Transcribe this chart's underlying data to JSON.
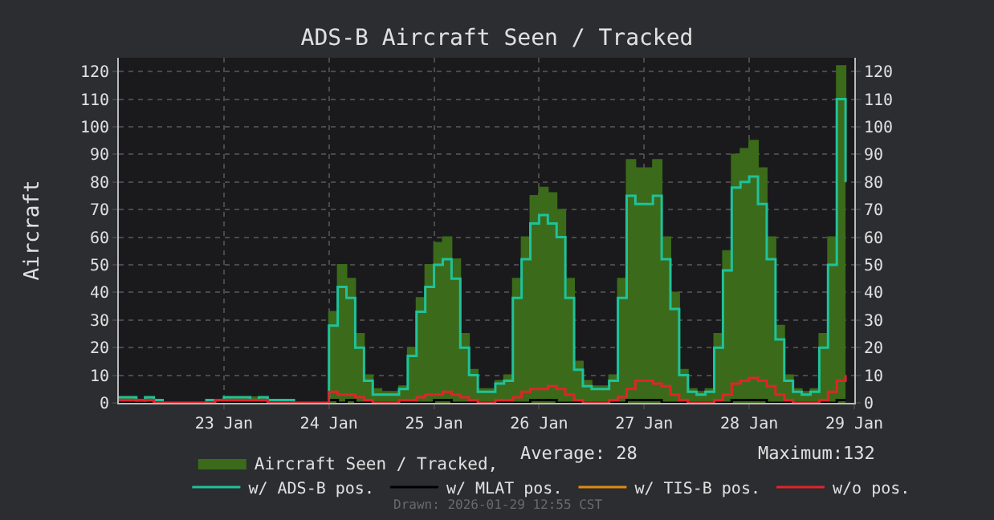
{
  "chart_data": {
    "type": "area",
    "title": "ADS-B Aircraft Seen / Tracked",
    "ylabel": "Aircraft",
    "x": [
      "2026-01-22T00:00",
      "2026-01-22T02:00",
      "2026-01-22T04:00",
      "2026-01-22T06:00",
      "2026-01-22T08:00",
      "2026-01-22T10:00",
      "2026-01-22T12:00",
      "2026-01-22T14:00",
      "2026-01-22T16:00",
      "2026-01-22T18:00",
      "2026-01-22T20:00",
      "2026-01-22T22:00",
      "2026-01-23T00:00",
      "2026-01-23T02:00",
      "2026-01-23T04:00",
      "2026-01-23T06:00",
      "2026-01-23T08:00",
      "2026-01-23T10:00",
      "2026-01-23T12:00",
      "2026-01-23T14:00",
      "2026-01-23T16:00",
      "2026-01-23T18:00",
      "2026-01-23T20:00",
      "2026-01-23T22:00",
      "2026-01-24T00:00",
      "2026-01-24T02:00",
      "2026-01-24T04:00",
      "2026-01-24T06:00",
      "2026-01-24T08:00",
      "2026-01-24T10:00",
      "2026-01-24T12:00",
      "2026-01-24T14:00",
      "2026-01-24T16:00",
      "2026-01-24T18:00",
      "2026-01-24T20:00",
      "2026-01-24T22:00",
      "2026-01-25T00:00",
      "2026-01-25T02:00",
      "2026-01-25T04:00",
      "2026-01-25T06:00",
      "2026-01-25T08:00",
      "2026-01-25T10:00",
      "2026-01-25T12:00",
      "2026-01-25T14:00",
      "2026-01-25T16:00",
      "2026-01-25T18:00",
      "2026-01-25T20:00",
      "2026-01-25T22:00",
      "2026-01-26T00:00",
      "2026-01-26T02:00",
      "2026-01-26T04:00",
      "2026-01-26T06:00",
      "2026-01-26T08:00",
      "2026-01-26T10:00",
      "2026-01-26T12:00",
      "2026-01-26T14:00",
      "2026-01-26T16:00",
      "2026-01-26T18:00",
      "2026-01-26T20:00",
      "2026-01-26T22:00",
      "2026-01-27T00:00",
      "2026-01-27T02:00",
      "2026-01-27T04:00",
      "2026-01-27T06:00",
      "2026-01-27T08:00",
      "2026-01-27T10:00",
      "2026-01-27T12:00",
      "2026-01-27T14:00",
      "2026-01-27T16:00",
      "2026-01-27T18:00",
      "2026-01-27T20:00",
      "2026-01-27T22:00",
      "2026-01-28T00:00",
      "2026-01-28T02:00",
      "2026-01-28T04:00",
      "2026-01-28T06:00",
      "2026-01-28T08:00",
      "2026-01-28T10:00",
      "2026-01-28T12:00",
      "2026-01-28T14:00",
      "2026-01-28T16:00",
      "2026-01-28T18:00",
      "2026-01-28T20:00",
      "2026-01-28T22:00"
    ],
    "series": [
      {
        "name": "Aircraft Seen / Tracked,",
        "color": "#3b6b1a",
        "values": [
          2,
          2,
          1,
          2,
          1,
          0,
          0,
          0,
          0,
          0,
          1,
          1,
          2,
          2,
          2,
          2,
          2,
          1,
          1,
          1,
          0,
          0,
          0,
          0,
          33,
          50,
          45,
          25,
          10,
          5,
          4,
          4,
          6,
          20,
          38,
          50,
          58,
          60,
          52,
          25,
          12,
          5,
          5,
          8,
          10,
          45,
          60,
          75,
          78,
          76,
          70,
          45,
          15,
          8,
          6,
          6,
          10,
          45,
          88,
          85,
          85,
          88,
          60,
          40,
          12,
          5,
          4,
          5,
          25,
          55,
          90,
          92,
          95,
          85,
          60,
          28,
          10,
          5,
          4,
          5,
          25,
          60,
          122,
          90
        ]
      },
      {
        "name": "w/ ADS-B pos.",
        "type": "step",
        "color": "#1fc29c",
        "values": [
          2,
          2,
          0,
          2,
          1,
          0,
          0,
          0,
          0,
          0,
          1,
          1,
          2,
          2,
          2,
          1,
          2,
          1,
          1,
          1,
          0,
          0,
          0,
          0,
          28,
          42,
          38,
          20,
          8,
          3,
          3,
          3,
          5,
          17,
          33,
          42,
          50,
          52,
          45,
          20,
          10,
          4,
          4,
          7,
          8,
          38,
          52,
          65,
          68,
          65,
          60,
          38,
          12,
          6,
          5,
          5,
          8,
          38,
          75,
          72,
          72,
          75,
          52,
          34,
          10,
          4,
          3,
          4,
          20,
          48,
          78,
          80,
          82,
          72,
          52,
          23,
          8,
          4,
          3,
          4,
          20,
          50,
          110,
          80
        ]
      },
      {
        "name": "w/ MLAT pos.",
        "type": "step",
        "color": "#000000",
        "values": [
          0,
          0,
          0,
          0,
          0,
          0,
          0,
          0,
          0,
          0,
          0,
          0,
          0,
          0,
          0,
          0,
          0,
          0,
          0,
          0,
          0,
          0,
          0,
          0,
          1,
          0,
          1,
          0,
          0,
          0,
          0,
          0,
          0,
          0,
          0,
          0,
          1,
          1,
          0,
          0,
          0,
          0,
          0,
          0,
          0,
          0,
          0,
          1,
          1,
          1,
          0,
          0,
          0,
          0,
          0,
          0,
          0,
          0,
          1,
          1,
          1,
          1,
          0,
          0,
          0,
          0,
          0,
          0,
          0,
          0,
          1,
          1,
          1,
          1,
          0,
          0,
          0,
          0,
          0,
          0,
          0,
          0,
          1,
          1
        ]
      },
      {
        "name": "w/ TIS-B pos.",
        "type": "step",
        "color": "#e08a0f",
        "values": [
          null,
          null,
          null,
          null,
          null,
          null,
          null,
          null,
          null,
          null,
          null,
          null,
          null,
          null,
          null,
          null,
          null,
          null,
          null,
          null,
          null,
          null,
          null,
          null,
          null,
          null,
          null,
          null,
          null,
          null,
          null,
          null,
          null,
          null,
          null,
          null,
          null,
          null,
          null,
          null,
          null,
          null,
          null,
          null,
          null,
          null,
          null,
          null,
          null,
          null,
          null,
          null,
          null,
          null,
          null,
          null,
          null,
          null,
          null,
          null,
          null,
          null,
          null,
          null,
          null,
          null,
          null,
          null,
          null,
          null,
          null,
          null,
          null,
          null,
          null,
          null,
          null,
          null,
          null,
          null,
          null,
          null,
          null,
          null
        ]
      },
      {
        "name": "w/o pos.",
        "type": "step",
        "color": "#e0242b",
        "values": [
          1,
          1,
          1,
          1,
          0,
          0,
          0,
          0,
          0,
          0,
          0,
          1,
          1,
          1,
          1,
          1,
          1,
          0,
          0,
          0,
          0,
          0,
          0,
          0,
          4,
          3,
          3,
          2,
          1,
          0,
          0,
          0,
          1,
          1,
          2,
          3,
          3,
          4,
          3,
          2,
          1,
          0,
          0,
          1,
          1,
          2,
          4,
          5,
          5,
          6,
          5,
          3,
          1,
          0,
          0,
          0,
          1,
          2,
          5,
          8,
          8,
          7,
          6,
          3,
          1,
          0,
          0,
          0,
          1,
          3,
          7,
          8,
          9,
          8,
          6,
          3,
          1,
          0,
          0,
          0,
          1,
          4,
          8,
          10
        ]
      }
    ],
    "xlim": [
      "2026-01-22T00:00",
      "2026-01-29T00:00"
    ],
    "xticks": [
      {
        "value": "2026-01-23",
        "label": "23 Jan"
      },
      {
        "value": "2026-01-24",
        "label": "24 Jan"
      },
      {
        "value": "2026-01-25",
        "label": "25 Jan"
      },
      {
        "value": "2026-01-26",
        "label": "26 Jan"
      },
      {
        "value": "2026-01-27",
        "label": "27 Jan"
      },
      {
        "value": "2026-01-28",
        "label": "28 Jan"
      },
      {
        "value": "2026-01-29",
        "label": "29 Jan"
      }
    ],
    "ylim": [
      0,
      125
    ],
    "yticks": [
      0,
      10,
      20,
      30,
      40,
      50,
      60,
      70,
      80,
      90,
      100,
      110,
      120
    ],
    "y2lim": [
      0,
      125
    ],
    "y2ticks": [
      0,
      10,
      20,
      30,
      40,
      50,
      60,
      70,
      80,
      90,
      100,
      110,
      120
    ],
    "grid": true,
    "legend": "bottom",
    "line_style": "solid",
    "annotations": [
      "Average: 28",
      "Maximum:132",
      "Drawn: 2026-01-29 12:55 CST"
    ]
  }
}
